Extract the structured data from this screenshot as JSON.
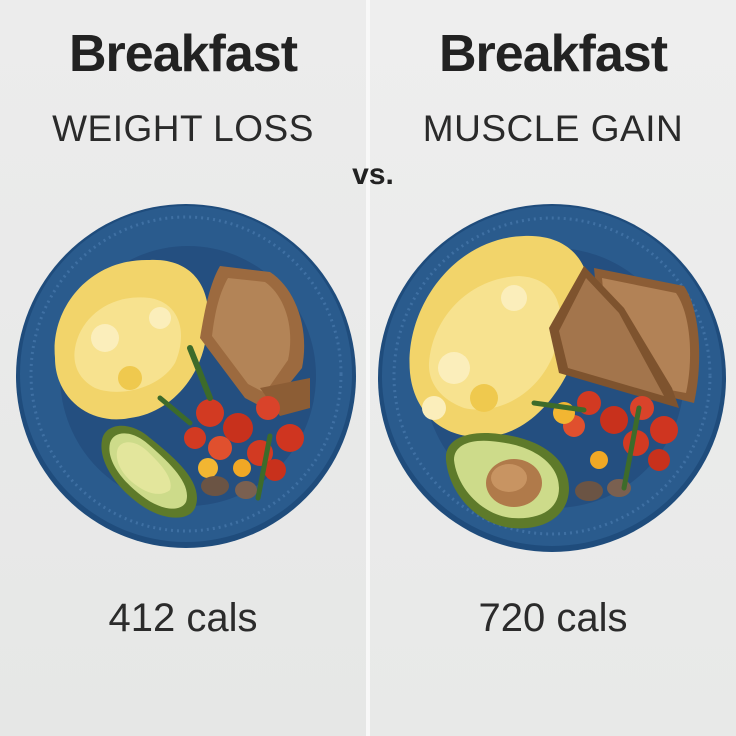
{
  "comparison": {
    "separator": "vs.",
    "left": {
      "title": "Breakfast",
      "subtitle": "WEIGHT LOSS",
      "calories": "412 cals"
    },
    "right": {
      "title": "Breakfast",
      "subtitle": "MUSCLE GAIN",
      "calories": "720 cals"
    }
  },
  "colors": {
    "plate_blue": "#2a5b8d",
    "egg_yellow": "#f2d46a",
    "toast_brown": "#9c6a3f",
    "tomato_red": "#d23a22",
    "avocado_green": "#a9c466"
  }
}
